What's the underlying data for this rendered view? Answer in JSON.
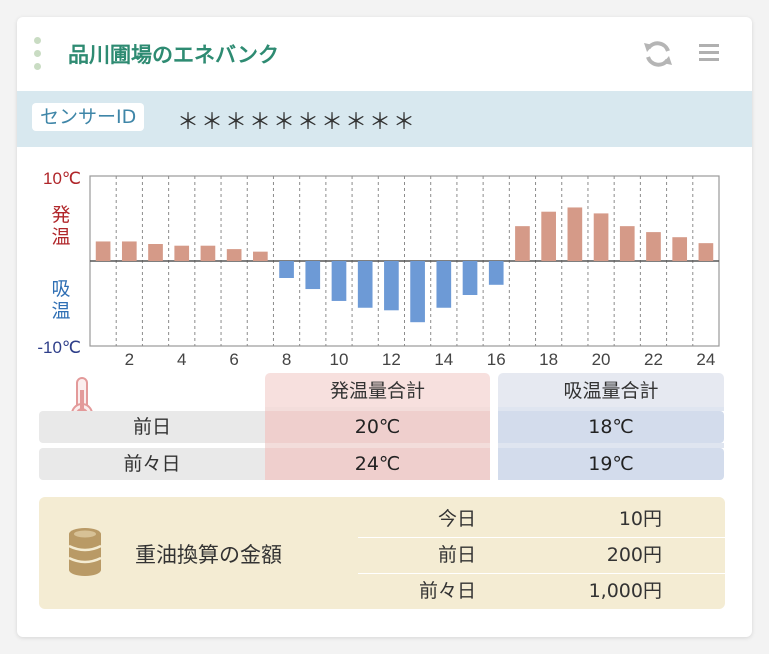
{
  "header": {
    "title": "品川圃場のエネバンク",
    "refresh_icon": "refresh-icon",
    "menu_icon": "hamburger-menu-icon"
  },
  "sensor": {
    "label": "センサーID",
    "value": "＊＊＊＊＊＊＊＊＊＊"
  },
  "colors": {
    "title": "#2e8b72",
    "hot_bar": "#d59a88",
    "cold_bar": "#6d9ad6",
    "hot_label": "#b0262a",
    "cold_label": "#2f6fb4"
  },
  "chart_data": {
    "type": "bar",
    "y_top_label": "10℃",
    "y_bottom_label": "-10℃",
    "hot_label": "発温",
    "cold_label": "吸温",
    "ylim": [
      -10,
      10
    ],
    "grid": true,
    "x": [
      1,
      2,
      3,
      4,
      5,
      6,
      7,
      8,
      9,
      10,
      11,
      12,
      13,
      14,
      15,
      16,
      17,
      18,
      19,
      20,
      21,
      22,
      23,
      24
    ],
    "x_tick_labels": [
      "2",
      "4",
      "6",
      "8",
      "10",
      "12",
      "14",
      "16",
      "18",
      "20",
      "22",
      "24"
    ],
    "values": [
      2.3,
      2.3,
      2.0,
      1.8,
      1.8,
      1.4,
      1.1,
      -2.0,
      -3.3,
      -4.7,
      -5.5,
      -5.8,
      -7.2,
      -5.5,
      -4.0,
      -2.8,
      4.1,
      5.8,
      6.3,
      5.6,
      4.1,
      3.4,
      2.8,
      2.1
    ]
  },
  "summary": {
    "hot_header": "発温量合計",
    "cold_header": "吸温量合計",
    "thermometer_icon": "thermometer-icon",
    "rows": [
      {
        "label": "前日",
        "hot": "20℃",
        "cold": "18℃"
      },
      {
        "label": "前々日",
        "hot": "24℃",
        "cold": "19℃"
      }
    ]
  },
  "oil": {
    "icon": "oil-drum-icon",
    "title": "重油換算の金額",
    "rows": [
      {
        "label": "今日",
        "value": "10円"
      },
      {
        "label": "前日",
        "value": "200円"
      },
      {
        "label": "前々日",
        "value": "1,000円"
      }
    ]
  }
}
